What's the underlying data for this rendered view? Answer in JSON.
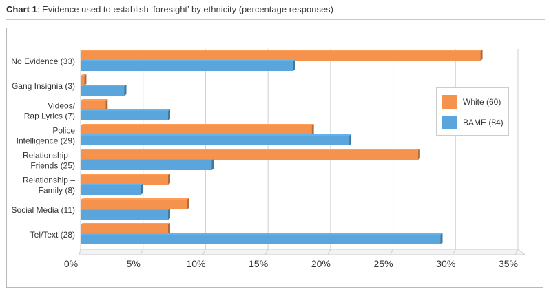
{
  "header": {
    "title_bold": "Chart 1",
    "title_rest": ": Evidence used to establish ‘foresight’ by ethnicity (percentage responses)"
  },
  "colors": {
    "white_series": "#f5924e",
    "bame_series": "#5aa6dc",
    "grid": "#cfcfcf"
  },
  "chart_data": {
    "type": "bar",
    "orientation": "horizontal",
    "title": "Chart 1: Evidence used to establish ‘foresight’ by ethnicity (percentage responses)",
    "categories": [
      [
        "No Evidence (33)"
      ],
      [
        "Gang Insignia (3)"
      ],
      [
        "Videos/",
        "Rap Lyrics (7)"
      ],
      [
        "Police",
        "Intelligence (29)"
      ],
      [
        "Relationship –",
        "Friends (25)"
      ],
      [
        "Relationship –",
        "Family (8)"
      ],
      [
        "Social Media (11)"
      ],
      [
        "Tel/Text (28)"
      ]
    ],
    "series": [
      {
        "name": "White (60)",
        "values": [
          32,
          0.3,
          2,
          18.5,
          27,
          7,
          8.5,
          7
        ]
      },
      {
        "name": "BAME (84)",
        "values": [
          17,
          3.5,
          7,
          21.5,
          10.5,
          4.8,
          7,
          28.8
        ]
      }
    ],
    "x_ticks": [
      0,
      5,
      10,
      15,
      20,
      25,
      30,
      35
    ],
    "x_tick_labels": [
      "0%",
      "5%",
      "10%",
      "15%",
      "20%",
      "25%",
      "30%",
      "35%"
    ],
    "xlim": [
      0,
      35
    ],
    "xlabel": "",
    "ylabel": "",
    "grid": true,
    "legend_position": "right"
  }
}
